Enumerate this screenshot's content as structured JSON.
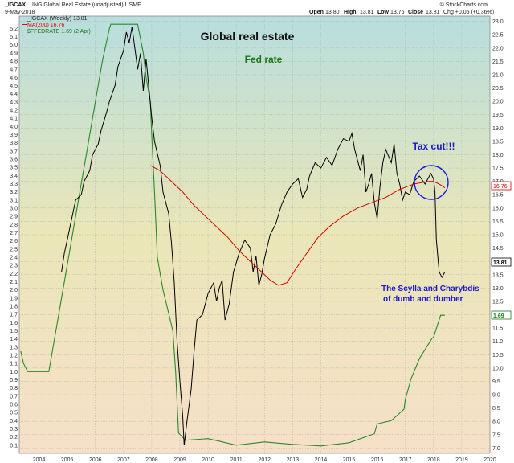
{
  "header": {
    "symbol": "_IGCAX",
    "description": "ING Global Real Estate (unadjusted) USMF",
    "date": "9-May-2018",
    "open_label": "Open",
    "open_value": "13.80",
    "high_label": "High",
    "high_value": "13.81",
    "low_label": "Low",
    "low_value": "13.76",
    "close_label": "Close",
    "close_value": "13.81",
    "change": "Chg +0.05 (+0.36%)",
    "watermark": "© StockCharts.com"
  },
  "legend": [
    {
      "text": "_IGCAX (Weekly) 13.81",
      "color": "#000000"
    },
    {
      "text": "MA(200) 16.76",
      "color": "#dd0000"
    },
    {
      "text": "$FFEDRATE 1.69 (2 Apr)",
      "color": "#1a7a1a"
    }
  ],
  "annotations": {
    "title1": "Global real estate",
    "title2": "Fed rate",
    "tax_cut": "Tax cut!!!",
    "scylla_line1": "The Scylla and Charybdis",
    "scylla_line2": "of dumb and dumber"
  },
  "badges": {
    "ma_value": "16.76",
    "price_value": "13.81",
    "fed_value": "1.69"
  },
  "colors": {
    "price": "#000000",
    "ma": "#dd0000",
    "fed": "#2a8a2a",
    "title1": "#111111",
    "title2": "#1a7a1a",
    "blue_text": "#1a1acc",
    "circle": "#1a1aee",
    "bg_top": "#b8dedd",
    "bg_bottom": "#f6e0c8"
  },
  "chart_data": {
    "type": "line",
    "x_axis": {
      "range": [
        2003.3,
        2020.0
      ],
      "ticks": [
        "2004",
        "2005",
        "2006",
        "2007",
        "2008",
        "2009",
        "2010",
        "2011",
        "2012",
        "2013",
        "2014",
        "2015",
        "2016",
        "2017",
        "2018",
        "2019",
        "2020"
      ]
    },
    "y_left": {
      "label": "Fed rate",
      "range": [
        0.0,
        5.35
      ],
      "ticks": [
        "0.1",
        "0.2",
        "0.3",
        "0.4",
        "0.5",
        "0.6",
        "0.7",
        "0.8",
        "0.9",
        "1.0",
        "1.1",
        "1.2",
        "1.3",
        "1.4",
        "1.5",
        "1.6",
        "1.7",
        "1.8",
        "1.9",
        "2.0",
        "2.1",
        "2.2",
        "2.3",
        "2.4",
        "2.5",
        "2.6",
        "2.7",
        "2.8",
        "2.9",
        "3.0",
        "3.1",
        "3.2",
        "3.3",
        "3.4",
        "3.5",
        "3.6",
        "3.7",
        "3.8",
        "3.9",
        "4.0",
        "4.1",
        "4.2",
        "4.3",
        "4.4",
        "4.5",
        "4.6",
        "4.7",
        "4.8",
        "4.9",
        "5.0",
        "5.1",
        "5.2"
      ]
    },
    "y_right": {
      "label": "_IGCAX",
      "range": [
        6.8,
        23.2
      ],
      "ticks": [
        "7.0",
        "7.5",
        "8.0",
        "8.5",
        "9.0",
        "9.5",
        "10.0",
        "10.5",
        "11.0",
        "11.5",
        "12.0",
        "12.5",
        "13.0",
        "13.5",
        "14.0",
        "14.5",
        "15.0",
        "15.5",
        "16.0",
        "16.5",
        "17.0",
        "17.5",
        "18.0",
        "18.5",
        "19.0",
        "19.5",
        "20.0",
        "20.5",
        "21.0",
        "21.5",
        "22.0",
        "22.5",
        "23.0"
      ]
    },
    "series": [
      {
        "name": "_IGCAX (Weekly) 13.81",
        "axis": "right",
        "x": [
          2004.8,
          2004.9,
          2005.0,
          2005.2,
          2005.3,
          2005.5,
          2005.6,
          2005.8,
          2005.9,
          2006.1,
          2006.2,
          2006.4,
          2006.5,
          2006.7,
          2006.8,
          2007.0,
          2007.1,
          2007.2,
          2007.3,
          2007.5,
          2007.6,
          2007.7,
          2007.8,
          2008.0,
          2008.1,
          2008.3,
          2008.4,
          2008.6,
          2008.7,
          2008.8,
          2008.9,
          2009.0,
          2009.1,
          2009.15,
          2009.25,
          2009.4,
          2009.5,
          2009.6,
          2009.8,
          2010.0,
          2010.2,
          2010.3,
          2010.4,
          2010.5,
          2010.6,
          2010.75,
          2010.9,
          2011.1,
          2011.3,
          2011.5,
          2011.6,
          2011.7,
          2011.8,
          2011.9,
          2012.0,
          2012.2,
          2012.4,
          2012.6,
          2012.8,
          2013.0,
          2013.2,
          2013.35,
          2013.5,
          2013.6,
          2013.8,
          2014.0,
          2014.2,
          2014.4,
          2014.6,
          2014.8,
          2015.0,
          2015.1,
          2015.2,
          2015.4,
          2015.5,
          2015.6,
          2015.7,
          2015.8,
          2015.9,
          2016.0,
          2016.1,
          2016.2,
          2016.3,
          2016.5,
          2016.6,
          2016.7,
          2016.8,
          2016.9,
          2017.0,
          2017.15,
          2017.3,
          2017.5,
          2017.7,
          2017.9,
          2018.0,
          2018.05,
          2018.1,
          2018.2,
          2018.3,
          2018.4
        ],
        "y": [
          13.6,
          14.3,
          14.8,
          15.8,
          16.3,
          16.5,
          17.0,
          17.4,
          18.0,
          18.4,
          18.9,
          19.6,
          20.0,
          20.6,
          21.3,
          21.9,
          22.6,
          22.2,
          22.8,
          21.2,
          21.8,
          20.4,
          21.6,
          19.4,
          18.5,
          17.6,
          16.6,
          15.8,
          14.7,
          13.2,
          11.0,
          9.5,
          8.2,
          7.1,
          8.0,
          9.2,
          10.6,
          11.8,
          12.0,
          12.8,
          13.2,
          12.5,
          13.0,
          13.3,
          11.8,
          12.4,
          13.6,
          14.3,
          14.8,
          14.5,
          13.6,
          14.2,
          13.1,
          13.5,
          14.1,
          15.0,
          15.4,
          16.1,
          16.6,
          16.9,
          17.1,
          16.4,
          16.7,
          17.2,
          17.7,
          17.5,
          17.9,
          17.6,
          18.2,
          18.6,
          18.5,
          18.8,
          18.2,
          17.4,
          18.0,
          16.6,
          16.9,
          17.3,
          16.2,
          15.6,
          16.8,
          17.7,
          18.2,
          17.7,
          18.4,
          17.3,
          16.9,
          16.3,
          16.6,
          16.5,
          17.0,
          17.2,
          16.9,
          17.3,
          17.1,
          16.6,
          14.8,
          13.6,
          13.4,
          13.6
        ]
      },
      {
        "name": "MA(200) 16.76",
        "axis": "right",
        "x": [
          2007.95,
          2008.3,
          2008.7,
          2009.1,
          2009.5,
          2009.9,
          2010.3,
          2010.7,
          2011.1,
          2011.5,
          2011.9,
          2012.2,
          2012.5,
          2012.8,
          2013.1,
          2013.5,
          2013.9,
          2014.3,
          2014.8,
          2015.3,
          2015.8,
          2016.3,
          2016.8,
          2017.3,
          2017.8,
          2018.0,
          2018.2,
          2018.4
        ],
        "y": [
          17.6,
          17.4,
          17.0,
          16.6,
          16.1,
          15.7,
          15.3,
          14.9,
          14.4,
          14.0,
          13.6,
          13.3,
          13.1,
          13.2,
          13.7,
          14.3,
          14.9,
          15.3,
          15.7,
          16.0,
          16.2,
          16.4,
          16.7,
          16.9,
          17.0,
          17.0,
          16.9,
          16.76
        ]
      },
      {
        "name": "$FFEDRATE 1.69 (2 Apr)",
        "axis": "left",
        "x": [
          2003.35,
          2003.45,
          2003.6,
          2003.8,
          2004.0,
          2004.2,
          2004.35,
          2004.5,
          2004.75,
          2005.0,
          2005.25,
          2005.5,
          2005.75,
          2006.0,
          2006.25,
          2006.5,
          2006.55,
          2007.0,
          2007.5,
          2007.7,
          2007.8,
          2007.95,
          2008.0,
          2008.1,
          2008.2,
          2008.3,
          2008.4,
          2008.75,
          2008.85,
          2008.95,
          2009.2,
          2010.0,
          2011.0,
          2012.0,
          2013.0,
          2014.0,
          2015.0,
          2015.9,
          2016.0,
          2016.5,
          2016.95,
          2017.0,
          2017.2,
          2017.5,
          2017.95,
          2018.0,
          2018.25,
          2018.4
        ],
        "y": [
          1.25,
          1.1,
          1.0,
          1.0,
          1.0,
          1.0,
          1.0,
          1.3,
          1.8,
          2.3,
          2.8,
          3.3,
          3.8,
          4.3,
          4.8,
          5.2,
          5.25,
          5.25,
          5.25,
          4.9,
          4.6,
          4.3,
          3.9,
          3.2,
          2.4,
          2.2,
          2.0,
          1.5,
          1.0,
          0.25,
          0.16,
          0.18,
          0.1,
          0.14,
          0.11,
          0.09,
          0.13,
          0.24,
          0.36,
          0.4,
          0.54,
          0.66,
          0.91,
          1.16,
          1.41,
          1.42,
          1.69,
          1.69
        ]
      }
    ],
    "grid": true,
    "legend_position": "top-left"
  }
}
